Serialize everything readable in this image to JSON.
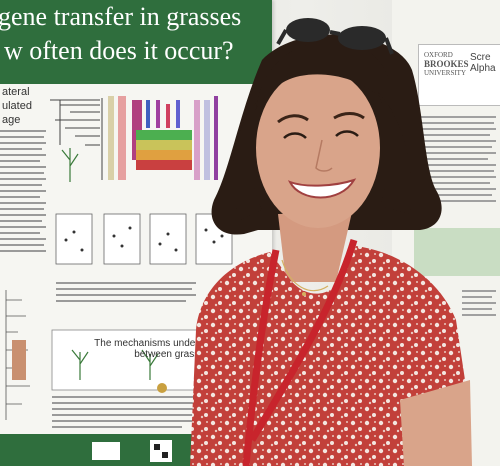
{
  "poster_left": {
    "title_line1": "gene transfer in grasses",
    "title_line2": "w often does it occur?",
    "side_line1": "ateral",
    "side_line2": "ulated",
    "side_line3": "age",
    "section_heading_line1": "The mechanisms underpinning late",
    "section_heading_line2": "between grasses"
  },
  "poster_right": {
    "logo_line1": "OXFORD",
    "logo_line2": "BROOKES",
    "logo_line3": "UNIVERSITY",
    "title_line1": "Scre",
    "title_line2": "Alpha"
  },
  "colors": {
    "poster_green": "#2f6e3d",
    "dress_red": "#c2403a",
    "lanyard_red": "#c8242c",
    "hair": "#2a1c14",
    "skin": "#d9a48a"
  }
}
